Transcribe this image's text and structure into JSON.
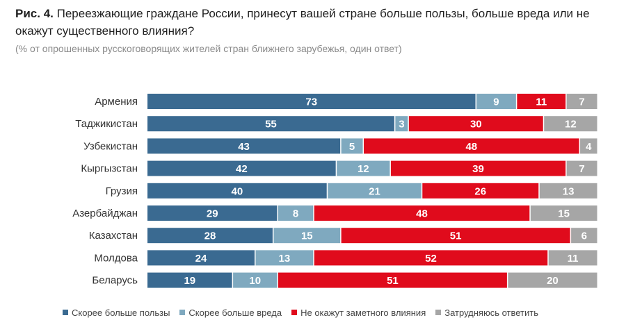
{
  "header": {
    "fig_label": "Рис. 4.",
    "title": "Переезжающие граждане России, принесут вашей стране больше пользы, больше вреда или не окажут существенного влияния?",
    "subtitle": "(% от опрошенных русскоговорящих жителей стран ближнего зарубежья, один ответ)"
  },
  "chart_data": {
    "type": "bar",
    "orientation": "horizontal",
    "stacked": true,
    "title": "Переезжающие граждане России, принесут вашей стране больше пользы, больше вреда или не окажут существенного влияния?",
    "subtitle": "(% от опрошенных русскоговорящих жителей стран ближнего зарубежья, один ответ)",
    "categories": [
      "Армения",
      "Таджикистан",
      "Узбекистан",
      "Кыргызстан",
      "Грузия",
      "Азербайджан",
      "Казахстан",
      "Молдова",
      "Беларусь"
    ],
    "series": [
      {
        "name": "Скорее больше пользы",
        "color": "#3a6a91",
        "values": [
          73,
          55,
          43,
          42,
          40,
          29,
          28,
          24,
          19
        ]
      },
      {
        "name": "Скорее больше вреда",
        "color": "#7fa9bf",
        "values": [
          9,
          3,
          5,
          12,
          21,
          8,
          15,
          13,
          10
        ]
      },
      {
        "name": "Не окажут заметного влияния",
        "color": "#e00b1c",
        "values": [
          11,
          30,
          48,
          39,
          26,
          48,
          51,
          52,
          51
        ]
      },
      {
        "name": "Затрудняюсь ответить",
        "color": "#a6a6a6",
        "values": [
          7,
          12,
          4,
          7,
          13,
          15,
          6,
          11,
          20
        ]
      }
    ],
    "xlim": [
      0,
      100
    ],
    "grid": false,
    "legend_position": "bottom"
  }
}
